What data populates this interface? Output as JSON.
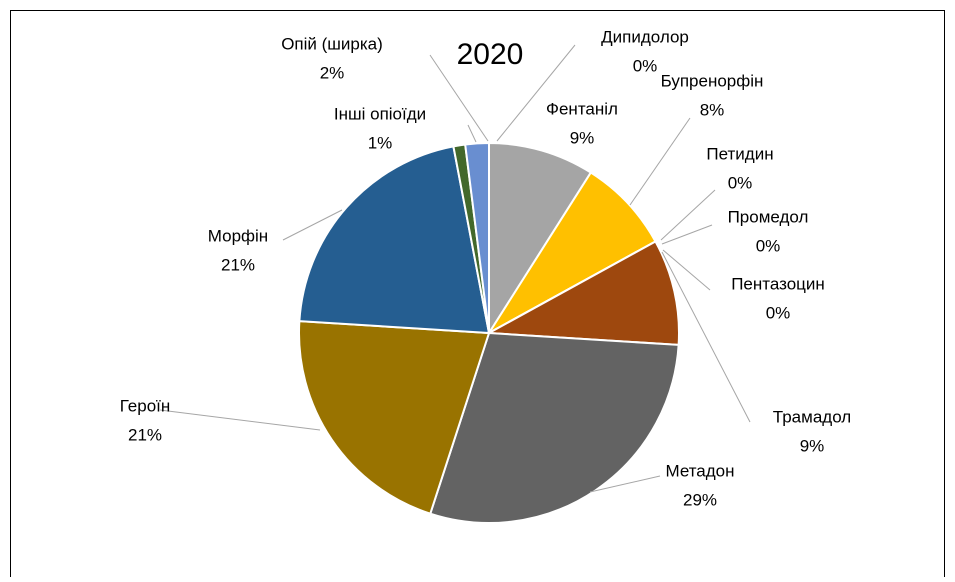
{
  "chart_data": {
    "type": "pie",
    "title": "2020",
    "categories": [
      "Дипидолор",
      "Фентаніл",
      "Бупренорфін",
      "Петидин",
      "Промедол",
      "Пентазоцин",
      "Трамадол",
      "Метадон",
      "Героїн",
      "Морфін",
      "Інші опіоїди",
      "Опій (ширка)"
    ],
    "values": [
      0,
      9,
      8,
      0,
      0,
      0,
      9,
      29,
      21,
      21,
      1,
      2
    ],
    "value_labels": [
      "0%",
      "9%",
      "8%",
      "0%",
      "0%",
      "0%",
      "9%",
      "29%",
      "21%",
      "21%",
      "1%",
      "2%"
    ],
    "colors": [
      "#4472c4",
      "#a5a5a5",
      "#ffc000",
      "#5b9bd5",
      "#70ad47",
      "#264478",
      "#9e480e",
      "#636363",
      "#997300",
      "#255e91",
      "#43682b",
      "#698ed0"
    ]
  }
}
